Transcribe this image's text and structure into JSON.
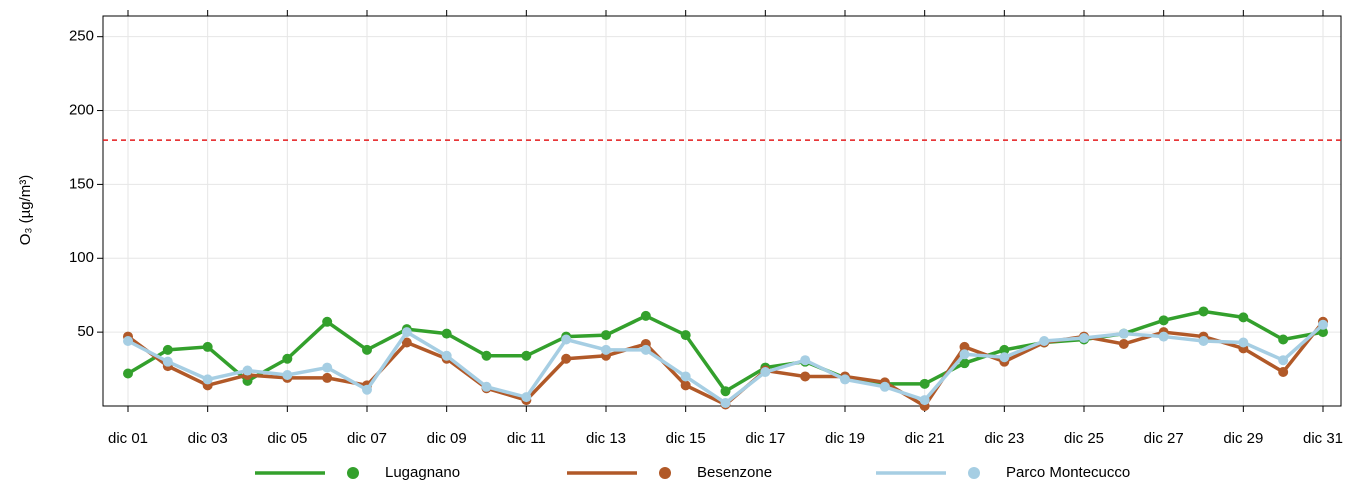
{
  "chart_data": {
    "type": "line",
    "ylabel": "O₃ (µg/m³)",
    "categories": [
      "dic 01",
      null,
      "dic 03",
      null,
      "dic 05",
      null,
      "dic 07",
      null,
      "dic 09",
      null,
      "dic 11",
      null,
      "dic 13",
      null,
      "dic 15",
      null,
      "dic 17",
      null,
      "dic 19",
      null,
      "dic 21",
      null,
      "dic 23",
      null,
      "dic 25",
      null,
      "dic 27",
      null,
      "dic 29",
      null,
      "dic 31"
    ],
    "series": [
      {
        "name": "Lugagnano",
        "color": "#33a02c",
        "values": [
          22,
          38,
          40,
          17,
          32,
          57,
          38,
          52,
          49,
          34,
          34,
          47,
          48,
          61,
          48,
          10,
          26,
          30,
          19,
          15,
          15,
          29,
          38,
          43,
          45,
          49,
          58,
          64,
          60,
          45,
          50
        ]
      },
      {
        "name": "Besenzone",
        "color": "#b15928",
        "values": [
          47,
          27,
          14,
          21,
          19,
          19,
          14,
          43,
          32,
          12,
          4,
          32,
          34,
          42,
          14,
          1,
          24,
          20,
          20,
          16,
          0,
          40,
          30,
          43,
          47,
          42,
          50,
          47,
          39,
          23,
          57
        ]
      },
      {
        "name": "Parco Montecucco",
        "color": "#a6cee3",
        "values": [
          44,
          30,
          18,
          24,
          21,
          26,
          11,
          50,
          34,
          13,
          6,
          45,
          38,
          38,
          20,
          2,
          23,
          31,
          18,
          13,
          4,
          35,
          33,
          44,
          46,
          49,
          47,
          44,
          43,
          31,
          55
        ]
      }
    ],
    "threshold": 180,
    "threshold_color": "#e41a1c",
    "ylim": [
      0,
      264
    ],
    "yticks": [
      50,
      100,
      150,
      200,
      250
    ],
    "grid": true,
    "legend": "bottom"
  }
}
